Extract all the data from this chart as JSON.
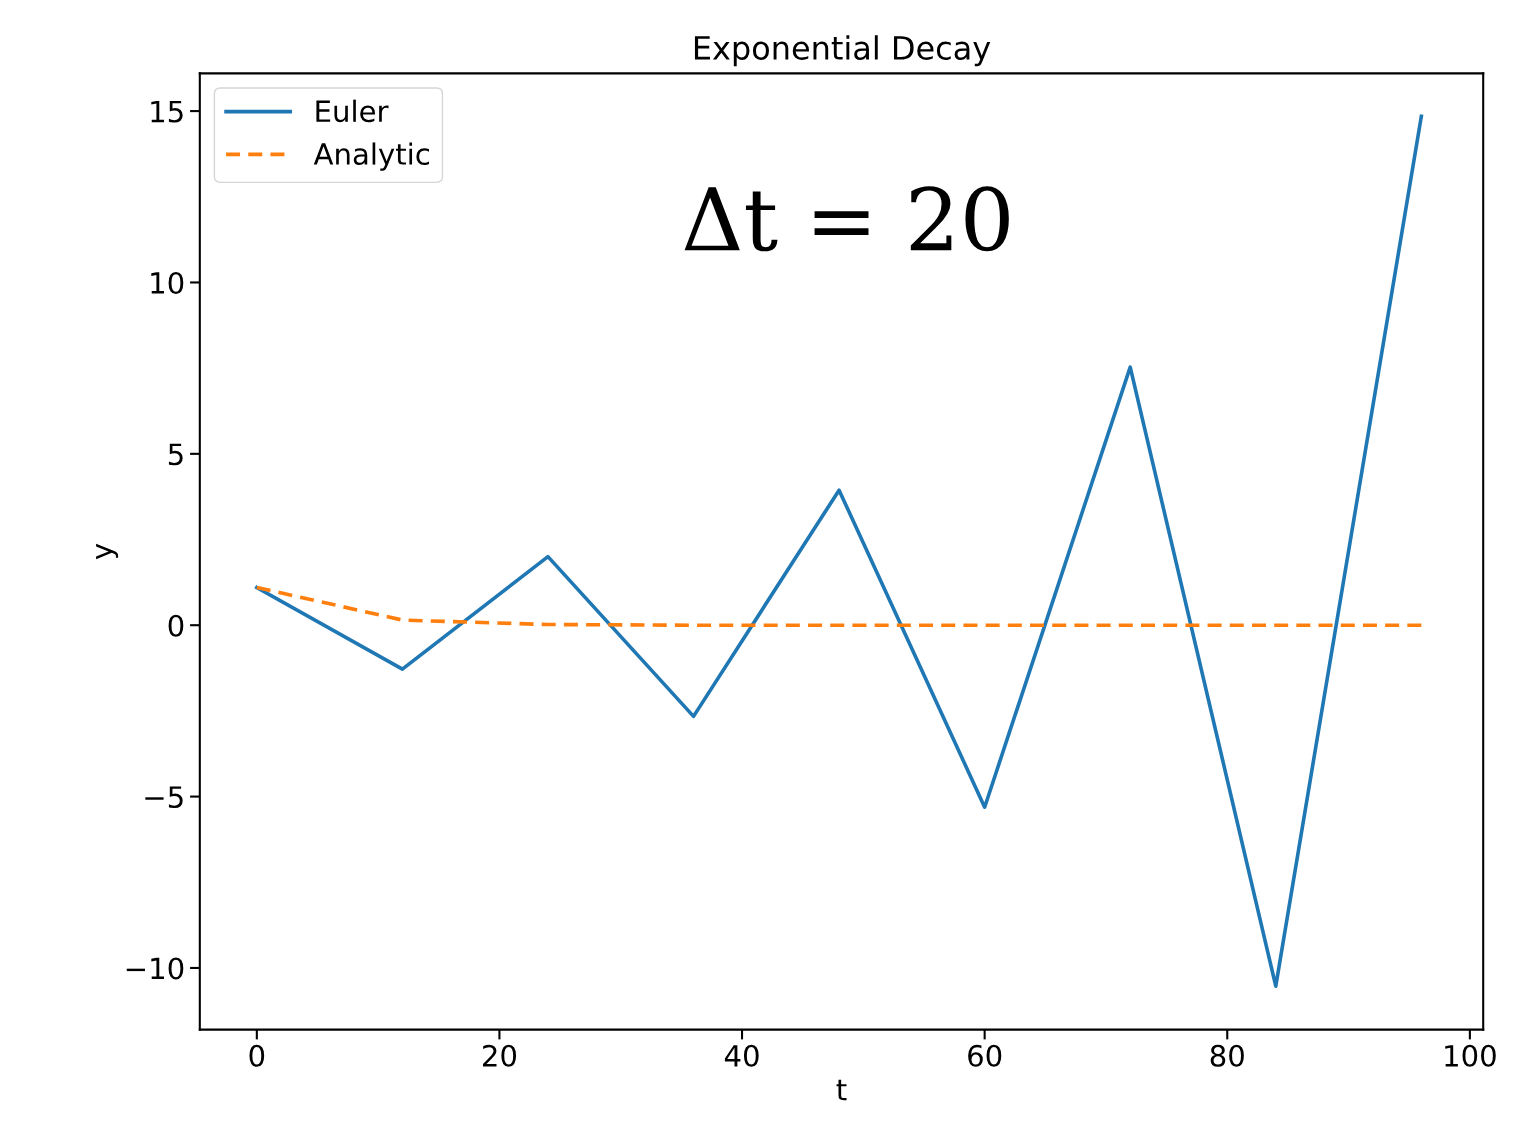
{
  "chart_data": {
    "type": "line",
    "title": "Exponential Decay",
    "xlabel": "t",
    "ylabel": "y",
    "x": [
      0,
      12,
      24,
      36,
      48,
      60,
      72,
      84,
      96
    ],
    "series": [
      {
        "name": "Euler",
        "color": "#1f77b4",
        "line_style": "solid",
        "values": [
          1.1,
          -1.28,
          2.0,
          -2.66,
          3.94,
          -5.31,
          7.53,
          -10.53,
          14.85
        ]
      },
      {
        "name": "Analytic",
        "color": "#ff7f0e",
        "line_style": "dashed",
        "values": [
          1.1,
          0.15,
          0.02,
          0,
          0,
          0,
          0,
          0,
          0
        ]
      }
    ],
    "xlim": [
      -4.7,
      101.1
    ],
    "ylim": [
      -11.8,
      16.1
    ],
    "xticks": [
      0,
      20,
      40,
      60,
      80,
      100
    ],
    "yticks": [
      {
        "value": -10,
        "label": "−10"
      },
      {
        "value": -5,
        "label": "−5"
      },
      0,
      5,
      10,
      15
    ],
    "annotations": [
      "Δt = 20"
    ],
    "legend": "top left",
    "grid": false,
    "marker": "none"
  }
}
